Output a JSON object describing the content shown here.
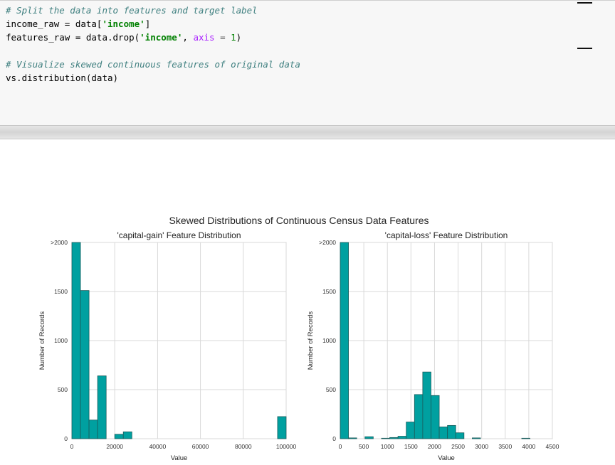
{
  "code": {
    "line1": "# Split the data into features and target label",
    "line2_a": "income_raw = data[",
    "line2_b": "'income'",
    "line2_c": "]",
    "line3_a": "features_raw = data.drop(",
    "line3_b": "'income'",
    "line3_c": ", ",
    "line3_d": "axis",
    "line3_e": " = ",
    "line3_f": "1",
    "line3_g": ")",
    "line5": "# Visualize skewed continuous features of original data",
    "line6": "vs.distribution(data)"
  },
  "chart_data": {
    "title": "Skewed Distributions of Continuous Census Data Features",
    "charts": [
      {
        "type": "bar",
        "title": "'capital-gain' Feature Distribution",
        "xlabel": "Value",
        "ylabel": "Number of Records",
        "xlim": [
          0,
          100000
        ],
        "ylim": [
          0,
          2000
        ],
        "xticks": [
          0,
          20000,
          40000,
          60000,
          80000,
          100000
        ],
        "xtick_labels": [
          "0",
          "20000",
          "40000",
          "60000",
          "80000",
          "100000"
        ],
        "yticks": [
          0,
          500,
          1000,
          1500,
          2000
        ],
        "ytick_labels": [
          "0",
          "500",
          "1000",
          "1500",
          ">2000"
        ],
        "bin_width": 4000,
        "bins": [
          {
            "x0": 0,
            "value": 2000
          },
          {
            "x0": 4000,
            "value": 1510
          },
          {
            "x0": 8000,
            "value": 190
          },
          {
            "x0": 12000,
            "value": 640
          },
          {
            "x0": 20000,
            "value": 45
          },
          {
            "x0": 24000,
            "value": 70
          },
          {
            "x0": 96000,
            "value": 225
          }
        ]
      },
      {
        "type": "bar",
        "title": "'capital-loss' Feature Distribution",
        "xlabel": "Value",
        "ylabel": "Number of Records",
        "xlim": [
          0,
          4500
        ],
        "ylim": [
          0,
          2000
        ],
        "xticks": [
          0,
          500,
          1000,
          1500,
          2000,
          2500,
          3000,
          3500,
          4000,
          4500
        ],
        "xtick_labels": [
          "0",
          "500",
          "1000",
          "1500",
          "2000",
          "2500",
          "3000",
          "3500",
          "4000",
          "4500"
        ],
        "yticks": [
          0,
          500,
          1000,
          1500,
          2000
        ],
        "ytick_labels": [
          "0",
          "500",
          "1000",
          "1500",
          ">2000"
        ],
        "bin_width": 175,
        "bins": [
          {
            "x0": 0,
            "value": 2000
          },
          {
            "x0": 175,
            "value": 8
          },
          {
            "x0": 525,
            "value": 20
          },
          {
            "x0": 875,
            "value": 5
          },
          {
            "x0": 1050,
            "value": 12
          },
          {
            "x0": 1225,
            "value": 25
          },
          {
            "x0": 1400,
            "value": 170
          },
          {
            "x0": 1575,
            "value": 450
          },
          {
            "x0": 1750,
            "value": 680
          },
          {
            "x0": 1925,
            "value": 440
          },
          {
            "x0": 2100,
            "value": 120
          },
          {
            "x0": 2275,
            "value": 135
          },
          {
            "x0": 2450,
            "value": 60
          },
          {
            "x0": 2800,
            "value": 8
          },
          {
            "x0": 3850,
            "value": 5
          }
        ]
      }
    ]
  }
}
